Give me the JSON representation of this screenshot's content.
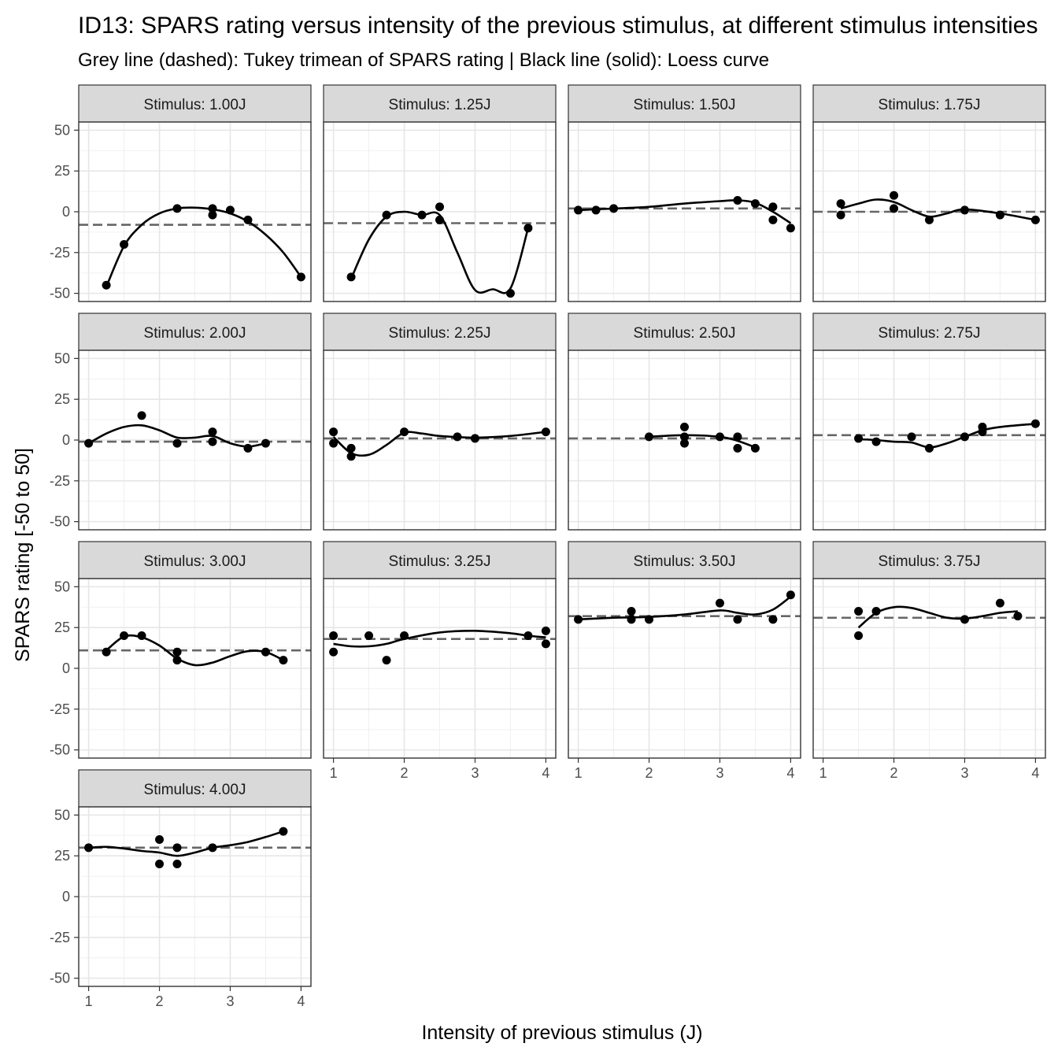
{
  "chart_data": {
    "type": "scatter",
    "title": "ID13: SPARS rating versus intensity of the previous stimulus, at different stimulus intensities",
    "subtitle": "Grey line (dashed): Tukey trimean of SPARS rating | Black line (solid): Loess curve",
    "xlabel": "Intensity of previous stimulus (J)",
    "ylabel": "SPARS rating [-50 to 50]",
    "xlim": [
      0.86,
      4.14
    ],
    "ylim": [
      -55,
      55
    ],
    "x_ticks": [
      1,
      2,
      3,
      4
    ],
    "y_ticks": [
      -50,
      -25,
      0,
      25,
      50
    ],
    "grid": true,
    "line_colors": {
      "trimean": "#666666",
      "loess": "#000000",
      "points": "#000000"
    },
    "panels": [
      {
        "label": "Stimulus: 1.00J",
        "trimean": -8,
        "points": [
          [
            1.25,
            -45
          ],
          [
            1.5,
            -20
          ],
          [
            2.25,
            2
          ],
          [
            2.75,
            2
          ],
          [
            2.75,
            -2
          ],
          [
            3.0,
            1
          ],
          [
            3.25,
            -5
          ],
          [
            4.0,
            -40
          ]
        ],
        "loess": [
          [
            1.25,
            -46
          ],
          [
            1.5,
            -21
          ],
          [
            1.75,
            -8
          ],
          [
            2.0,
            -1
          ],
          [
            2.25,
            2
          ],
          [
            2.5,
            2.5
          ],
          [
            2.75,
            1.5
          ],
          [
            3.0,
            -1
          ],
          [
            3.25,
            -6
          ],
          [
            3.5,
            -14
          ],
          [
            3.75,
            -25
          ],
          [
            4.0,
            -40
          ]
        ]
      },
      {
        "label": "Stimulus: 1.25J",
        "trimean": -7,
        "points": [
          [
            1.25,
            -40
          ],
          [
            1.75,
            -2
          ],
          [
            2.25,
            -2
          ],
          [
            2.5,
            3
          ],
          [
            2.5,
            -5
          ],
          [
            3.5,
            -50
          ],
          [
            3.75,
            -10
          ]
        ],
        "loess": [
          [
            1.25,
            -41
          ],
          [
            1.5,
            -17
          ],
          [
            1.75,
            -3
          ],
          [
            2.0,
            0
          ],
          [
            2.25,
            -2
          ],
          [
            2.5,
            -2
          ],
          [
            2.75,
            -25
          ],
          [
            3.0,
            -48
          ],
          [
            3.25,
            -47.5
          ],
          [
            3.5,
            -47
          ],
          [
            3.75,
            -10
          ]
        ]
      },
      {
        "label": "Stimulus: 1.50J",
        "trimean": 2,
        "points": [
          [
            1.0,
            1
          ],
          [
            1.25,
            1
          ],
          [
            1.5,
            2
          ],
          [
            3.25,
            7
          ],
          [
            3.5,
            5
          ],
          [
            3.75,
            3
          ],
          [
            3.75,
            -5
          ],
          [
            4.0,
            -10
          ]
        ],
        "loess": [
          [
            1.0,
            1
          ],
          [
            1.5,
            2
          ],
          [
            2.0,
            3
          ],
          [
            2.5,
            5
          ],
          [
            3.0,
            6.5
          ],
          [
            3.25,
            7
          ],
          [
            3.5,
            5.5
          ],
          [
            3.75,
            0
          ],
          [
            4.0,
            -7
          ]
        ]
      },
      {
        "label": "Stimulus: 1.75J",
        "trimean": 0,
        "points": [
          [
            1.25,
            5
          ],
          [
            1.25,
            -2
          ],
          [
            2.0,
            10
          ],
          [
            2.0,
            2
          ],
          [
            2.5,
            -5
          ],
          [
            3.0,
            1
          ],
          [
            3.5,
            -2
          ],
          [
            4.0,
            -5
          ]
        ],
        "loess": [
          [
            1.25,
            2
          ],
          [
            1.5,
            5
          ],
          [
            1.75,
            7.5
          ],
          [
            2.0,
            6
          ],
          [
            2.25,
            1
          ],
          [
            2.5,
            -3
          ],
          [
            2.75,
            -1
          ],
          [
            3.0,
            1.5
          ],
          [
            3.5,
            -1
          ],
          [
            4.0,
            -5
          ]
        ]
      },
      {
        "label": "Stimulus: 2.00J",
        "trimean": -1,
        "points": [
          [
            1.0,
            -2
          ],
          [
            1.75,
            15
          ],
          [
            2.25,
            -2
          ],
          [
            2.75,
            5
          ],
          [
            2.75,
            -1
          ],
          [
            3.25,
            -5
          ],
          [
            3.5,
            -2
          ]
        ],
        "loess": [
          [
            1.0,
            -2
          ],
          [
            1.25,
            4
          ],
          [
            1.5,
            8
          ],
          [
            1.75,
            9
          ],
          [
            2.0,
            6
          ],
          [
            2.25,
            1.5
          ],
          [
            2.5,
            1.5
          ],
          [
            2.75,
            2.5
          ],
          [
            3.0,
            -2
          ],
          [
            3.25,
            -4
          ],
          [
            3.5,
            -2
          ]
        ]
      },
      {
        "label": "Stimulus: 2.25J",
        "trimean": 1,
        "points": [
          [
            1.0,
            5
          ],
          [
            1.0,
            -2
          ],
          [
            1.25,
            -5
          ],
          [
            1.25,
            -10
          ],
          [
            2.0,
            5
          ],
          [
            2.75,
            2
          ],
          [
            3.0,
            1
          ],
          [
            4.0,
            5
          ]
        ],
        "loess": [
          [
            1.0,
            2
          ],
          [
            1.25,
            -8
          ],
          [
            1.5,
            -9
          ],
          [
            1.75,
            -3
          ],
          [
            2.0,
            4.5
          ],
          [
            2.25,
            4
          ],
          [
            2.5,
            2.5
          ],
          [
            3.0,
            1.5
          ],
          [
            3.5,
            2.5
          ],
          [
            4.0,
            5
          ]
        ]
      },
      {
        "label": "Stimulus: 2.50J",
        "trimean": 1,
        "points": [
          [
            2.0,
            2
          ],
          [
            2.5,
            8
          ],
          [
            2.5,
            2
          ],
          [
            2.5,
            -2
          ],
          [
            3.0,
            2
          ],
          [
            3.25,
            2
          ],
          [
            3.25,
            -5
          ],
          [
            3.5,
            -5
          ]
        ],
        "loess": [
          [
            2.0,
            2
          ],
          [
            2.5,
            3
          ],
          [
            3.0,
            2
          ],
          [
            3.25,
            -0.5
          ],
          [
            3.5,
            -4.5
          ]
        ]
      },
      {
        "label": "Stimulus: 2.75J",
        "trimean": 3,
        "points": [
          [
            1.5,
            1
          ],
          [
            1.75,
            -1
          ],
          [
            2.25,
            2
          ],
          [
            2.5,
            -5
          ],
          [
            3.0,
            2
          ],
          [
            3.25,
            8
          ],
          [
            3.25,
            5
          ],
          [
            4.0,
            10
          ]
        ],
        "loess": [
          [
            1.5,
            0.5
          ],
          [
            1.75,
            0
          ],
          [
            2.0,
            -1
          ],
          [
            2.25,
            -1.5
          ],
          [
            2.5,
            -4.5
          ],
          [
            2.75,
            -2
          ],
          [
            3.0,
            2
          ],
          [
            3.25,
            6
          ],
          [
            3.5,
            8
          ],
          [
            4.0,
            10
          ]
        ]
      },
      {
        "label": "Stimulus: 3.00J",
        "trimean": 11,
        "points": [
          [
            1.25,
            10
          ],
          [
            1.5,
            20
          ],
          [
            1.75,
            20
          ],
          [
            2.25,
            10
          ],
          [
            2.25,
            5
          ],
          [
            3.5,
            10
          ],
          [
            3.75,
            5
          ]
        ],
        "loess": [
          [
            1.25,
            11
          ],
          [
            1.5,
            19.5
          ],
          [
            1.75,
            19
          ],
          [
            2.0,
            14
          ],
          [
            2.25,
            6
          ],
          [
            2.5,
            2
          ],
          [
            2.75,
            3.5
          ],
          [
            3.0,
            7.5
          ],
          [
            3.25,
            10.5
          ],
          [
            3.5,
            10
          ],
          [
            3.75,
            5
          ]
        ]
      },
      {
        "label": "Stimulus: 3.25J",
        "trimean": 18,
        "points": [
          [
            1.0,
            20
          ],
          [
            1.0,
            10
          ],
          [
            1.5,
            20
          ],
          [
            1.75,
            5
          ],
          [
            2.0,
            20
          ],
          [
            3.75,
            20
          ],
          [
            4.0,
            23
          ],
          [
            4.0,
            15
          ]
        ],
        "loess": [
          [
            1.0,
            15
          ],
          [
            1.25,
            13.5
          ],
          [
            1.5,
            13.5
          ],
          [
            1.75,
            15
          ],
          [
            2.0,
            18
          ],
          [
            2.5,
            22
          ],
          [
            3.0,
            23
          ],
          [
            3.5,
            21.5
          ],
          [
            3.75,
            20
          ],
          [
            4.0,
            19
          ]
        ]
      },
      {
        "label": "Stimulus: 3.50J",
        "trimean": 32,
        "points": [
          [
            1.0,
            30
          ],
          [
            1.75,
            35
          ],
          [
            1.75,
            30
          ],
          [
            2.0,
            30
          ],
          [
            3.0,
            40
          ],
          [
            3.25,
            30
          ],
          [
            3.75,
            30
          ],
          [
            4.0,
            45
          ]
        ],
        "loess": [
          [
            1.0,
            30
          ],
          [
            1.5,
            31
          ],
          [
            2.0,
            31.5
          ],
          [
            2.5,
            33
          ],
          [
            3.0,
            35.5
          ],
          [
            3.25,
            34
          ],
          [
            3.5,
            33
          ],
          [
            3.75,
            36
          ],
          [
            4.0,
            44
          ]
        ]
      },
      {
        "label": "Stimulus: 3.75J",
        "trimean": 31,
        "points": [
          [
            1.5,
            35
          ],
          [
            1.5,
            20
          ],
          [
            1.75,
            35
          ],
          [
            3.0,
            30
          ],
          [
            3.5,
            40
          ],
          [
            3.75,
            32
          ]
        ],
        "loess": [
          [
            1.5,
            25
          ],
          [
            1.75,
            34
          ],
          [
            2.0,
            37.5
          ],
          [
            2.25,
            37
          ],
          [
            2.5,
            34
          ],
          [
            2.75,
            31
          ],
          [
            3.0,
            30.5
          ],
          [
            3.25,
            32
          ],
          [
            3.5,
            34
          ],
          [
            3.75,
            35
          ]
        ]
      },
      {
        "label": "Stimulus: 4.00J",
        "trimean": 30,
        "points": [
          [
            1.0,
            30
          ],
          [
            2.0,
            35
          ],
          [
            2.0,
            20
          ],
          [
            2.25,
            30
          ],
          [
            2.25,
            20
          ],
          [
            2.75,
            30
          ],
          [
            3.75,
            40
          ]
        ],
        "loess": [
          [
            1.0,
            30
          ],
          [
            1.25,
            30.5
          ],
          [
            1.5,
            29.5
          ],
          [
            1.75,
            28
          ],
          [
            2.0,
            27
          ],
          [
            2.25,
            25
          ],
          [
            2.5,
            27
          ],
          [
            2.75,
            30
          ],
          [
            3.0,
            31.5
          ],
          [
            3.25,
            33.5
          ],
          [
            3.5,
            36.5
          ],
          [
            3.75,
            40
          ]
        ]
      }
    ]
  }
}
